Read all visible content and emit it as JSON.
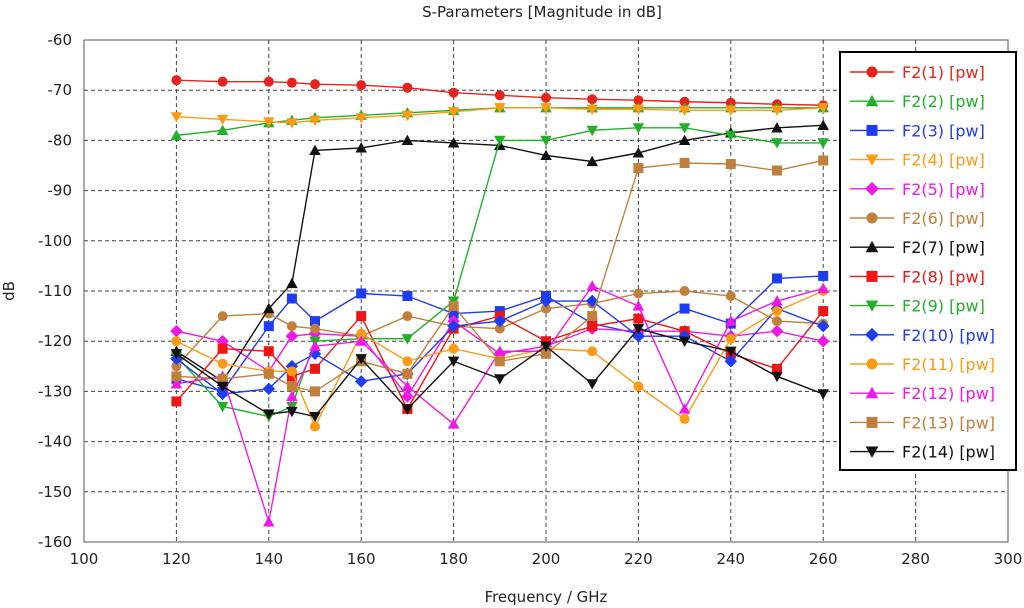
{
  "chart_data": {
    "type": "line",
    "title": "S-Parameters [Magnitude in dB]",
    "xlabel": "Frequency / GHz",
    "ylabel": "dB",
    "xlim": [
      100,
      300
    ],
    "ylim": [
      -160,
      -60
    ],
    "x_ticks": [
      100,
      120,
      140,
      160,
      180,
      200,
      220,
      240,
      260,
      280,
      300
    ],
    "y_ticks": [
      -60,
      -70,
      -80,
      -90,
      -100,
      -110,
      -120,
      -130,
      -140,
      -150,
      -160
    ],
    "grid": true,
    "legend_position": "right",
    "x": [
      120,
      130,
      140,
      145,
      150,
      160,
      170,
      180,
      190,
      200,
      210,
      220,
      230,
      240,
      250,
      260
    ],
    "series": [
      {
        "name": "F2(1)",
        "unit": "[pw]",
        "color": "#e8231e",
        "marker": "circle",
        "values": [
          -68,
          -68.3,
          -68.3,
          -68.5,
          -68.8,
          -69,
          -69.5,
          -70.5,
          -71,
          -71.5,
          -71.8,
          -72,
          -72.3,
          -72.5,
          -72.8,
          -73
        ]
      },
      {
        "name": "F2(2)",
        "unit": "[pw]",
        "color": "#22b02a",
        "marker": "triangle-up",
        "values": [
          -79,
          -78,
          -76.5,
          -76,
          -75.5,
          -75,
          -74.5,
          -74,
          -73.5,
          -73.5,
          -73.5,
          -73.5,
          -73.5,
          -73.5,
          -73.5,
          -73.5
        ]
      },
      {
        "name": "F2(3)",
        "unit": "[pw]",
        "color": "#1e3cf0",
        "marker": "square",
        "values": [
          -127.5,
          -130,
          -117,
          -111.5,
          -116,
          -110.5,
          -111,
          -114.5,
          -114,
          -111,
          -116.5,
          -118.5,
          -113.5,
          -116.5,
          -107.5,
          -107
        ]
      },
      {
        "name": "F2(4)",
        "unit": "[pw]",
        "color": "#ff9a14",
        "marker": "triangle-down",
        "values": [
          -75.3,
          -75.8,
          -76.3,
          -76.5,
          -76,
          -75.5,
          -75,
          -74.3,
          -73.5,
          -73.5,
          -73.8,
          -73.8,
          -74,
          -74,
          -74,
          -73.5
        ]
      },
      {
        "name": "F2(5)",
        "unit": "[pw]",
        "color": "#f018e8",
        "marker": "diamond",
        "values": [
          -118,
          -120,
          -126,
          -119,
          -118.5,
          -119,
          -131,
          -116,
          -122.5,
          -121,
          -117.5,
          -118,
          -118,
          -119,
          -118,
          -120
        ]
      },
      {
        "name": "F2(6)",
        "unit": "[pw]",
        "color": "#c0803c",
        "marker": "circle",
        "values": [
          -125,
          -115,
          -114.5,
          -117,
          -117.5,
          -119,
          -115,
          -117,
          -117.5,
          -113.5,
          -112.5,
          -110.5,
          -110,
          -111,
          -116,
          -116.5
        ]
      },
      {
        "name": "F2(7)",
        "unit": "[pw]",
        "color": "#111111",
        "marker": "triangle-up",
        "values": [
          -122,
          -128,
          -113.5,
          -108.5,
          -82,
          -81.5,
          -80,
          -80.5,
          -81,
          -83,
          -84.2,
          -82.5,
          -80,
          -78.5,
          -77.5,
          -77
        ]
      },
      {
        "name": "F2(8)",
        "unit": "[pw]",
        "color": "#f01414",
        "marker": "square",
        "values": [
          -132,
          -121.5,
          -122,
          -127,
          -125.5,
          -115,
          -133.5,
          -117.5,
          -115,
          -120,
          -117,
          -115.5,
          -118,
          -122.5,
          -125.5,
          -114
        ]
      },
      {
        "name": "F2(9)",
        "unit": "[pw]",
        "color": "#22b02a",
        "marker": "triangle-down",
        "values": [
          -123,
          -133,
          -135,
          -133,
          -120,
          -119.5,
          -119.5,
          -112,
          -80,
          -80,
          -78,
          -77.5,
          -77.5,
          -79,
          -80.5,
          -80.5
        ]
      },
      {
        "name": "F2(10)",
        "unit": "[pw]",
        "color": "#1e3cf0",
        "marker": "diamond",
        "values": [
          -123.5,
          -130.5,
          -129.5,
          -125,
          -122.5,
          -128,
          -126.5,
          -117,
          -116,
          -112,
          -112,
          -119,
          -119,
          -124,
          -113.5,
          -117
        ]
      },
      {
        "name": "F2(11)",
        "unit": "[pw]",
        "color": "#ff9a14",
        "marker": "circle",
        "values": [
          -120,
          -124.5,
          -126,
          -126,
          -137,
          -118.5,
          -124,
          -121.5,
          -123.5,
          -121.5,
          -122,
          -129,
          -135.5,
          -119.5,
          -114,
          -110
        ]
      },
      {
        "name": "F2(12)",
        "unit": "[pw]",
        "color": "#f018e8",
        "marker": "triangle-up",
        "values": [
          -128.5,
          -127,
          -156,
          -131,
          -121,
          -120,
          -129,
          -136.5,
          -122,
          -122,
          -109,
          -113,
          -133.5,
          -116,
          -112,
          -109.5
        ]
      },
      {
        "name": "F2(13)",
        "unit": "[pw]",
        "color": "#c0803c",
        "marker": "square",
        "values": [
          -127,
          -127.5,
          -126.5,
          -129,
          -130,
          -124,
          -126.5,
          -113,
          -124,
          -122.5,
          -115,
          -85.5,
          -84.5,
          -84.7,
          -86,
          -84
        ]
      },
      {
        "name": "F2(14)",
        "unit": "[pw]",
        "color": "#111111",
        "marker": "triangle-down",
        "values": [
          -122.5,
          -129,
          -134.5,
          -134,
          -135,
          -123.5,
          -133.5,
          -124,
          -127.5,
          -121,
          -128.5,
          -117.5,
          -120,
          -122,
          -127,
          -130.5
        ]
      }
    ]
  }
}
